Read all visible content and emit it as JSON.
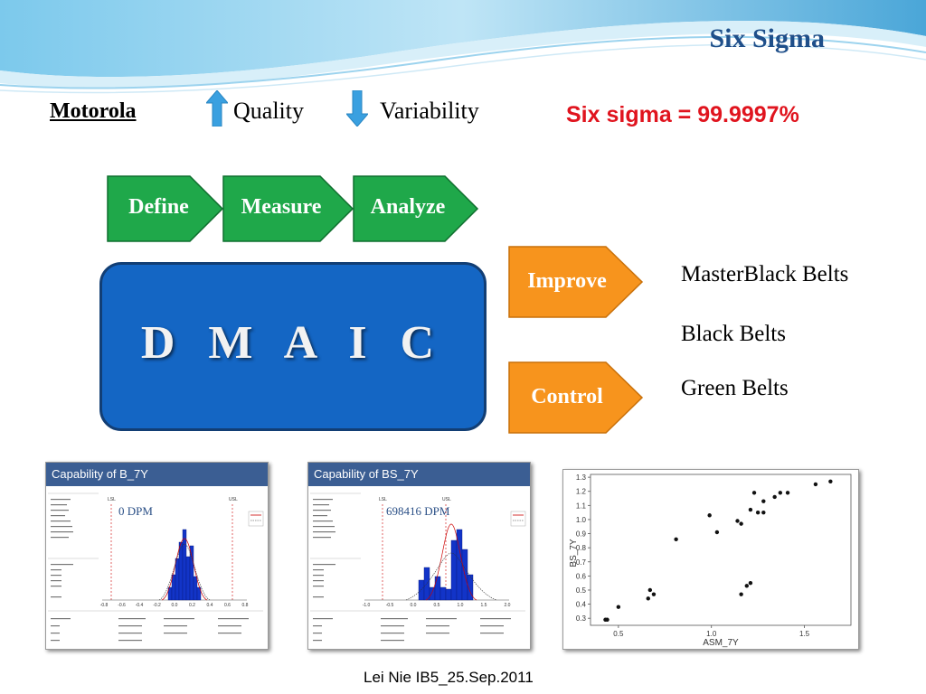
{
  "slide": {
    "title": "Six Sigma",
    "company": "Motorola",
    "quality_label": "Quality",
    "variability_label": "Variability",
    "sigma_statement": "Six sigma = 99.9997%",
    "steps": [
      {
        "label": "Define",
        "color": "#1fa84a"
      },
      {
        "label": "Measure",
        "color": "#1fa84a"
      },
      {
        "label": "Analyze",
        "color": "#1fa84a"
      },
      {
        "label": "Improve",
        "color": "#f7941d"
      },
      {
        "label": "Control",
        "color": "#f7941d"
      }
    ],
    "dmaic": "D M A I C",
    "belts": [
      "MasterBlack Belts",
      "Black Belts",
      "Green Belts"
    ],
    "footer": "Lei Nie IB5_25.Sep.2011",
    "colors": {
      "accent_blue": "#1466c4",
      "arrow_blue": "#3aa0e0",
      "title_blue": "#1f4f8a",
      "red": "#e0141e"
    }
  },
  "chart_data": [
    {
      "type": "bar",
      "title": "Capability of B_7Y",
      "annotation": "0 DPM",
      "spec_labels": [
        "LSL",
        "USL"
      ],
      "legend": [
        "Within",
        "Overall"
      ],
      "x_ticks": [
        "-0.8",
        "-0.6",
        "-0.4",
        "-0.2",
        "0.0",
        "0.2",
        "0.4",
        "0.6",
        "0.8"
      ]
    },
    {
      "type": "bar",
      "title": "Capability of BS_7Y",
      "annotation": "698416 DPM",
      "spec_labels": [
        "LSL",
        "USL"
      ],
      "legend": [
        "Within",
        "Overall"
      ],
      "x_ticks": [
        "-1.0",
        "-0.5",
        "0.0",
        "0.5",
        "1.0",
        "1.5",
        "2.0"
      ]
    },
    {
      "type": "scatter",
      "xlabel": "ASM_7Y",
      "ylabel": "BS_7Y",
      "xlim": [
        0.35,
        1.75
      ],
      "ylim": [
        0.25,
        1.32
      ],
      "x_ticks": [
        "0.5",
        "1.0",
        "1.5"
      ],
      "y_ticks": [
        "0.3",
        "0.4",
        "0.5",
        "0.6",
        "0.7",
        "0.8",
        "0.9",
        "1.0",
        "1.1",
        "1.2",
        "1.3"
      ],
      "points": [
        [
          0.43,
          0.29
        ],
        [
          0.44,
          0.29
        ],
        [
          0.5,
          0.38
        ],
        [
          0.66,
          0.44
        ],
        [
          0.67,
          0.5
        ],
        [
          0.69,
          0.47
        ],
        [
          0.81,
          0.86
        ],
        [
          0.99,
          1.03
        ],
        [
          1.03,
          0.91
        ],
        [
          1.14,
          0.99
        ],
        [
          1.16,
          0.97
        ],
        [
          1.21,
          1.07
        ],
        [
          1.23,
          1.19
        ],
        [
          1.25,
          1.05
        ],
        [
          1.28,
          1.13
        ],
        [
          1.28,
          1.05
        ],
        [
          1.34,
          1.16
        ],
        [
          1.37,
          1.19
        ],
        [
          1.41,
          1.19
        ],
        [
          1.56,
          1.25
        ],
        [
          1.64,
          1.27
        ],
        [
          1.16,
          0.47
        ],
        [
          1.19,
          0.53
        ],
        [
          1.21,
          0.55
        ]
      ]
    }
  ]
}
